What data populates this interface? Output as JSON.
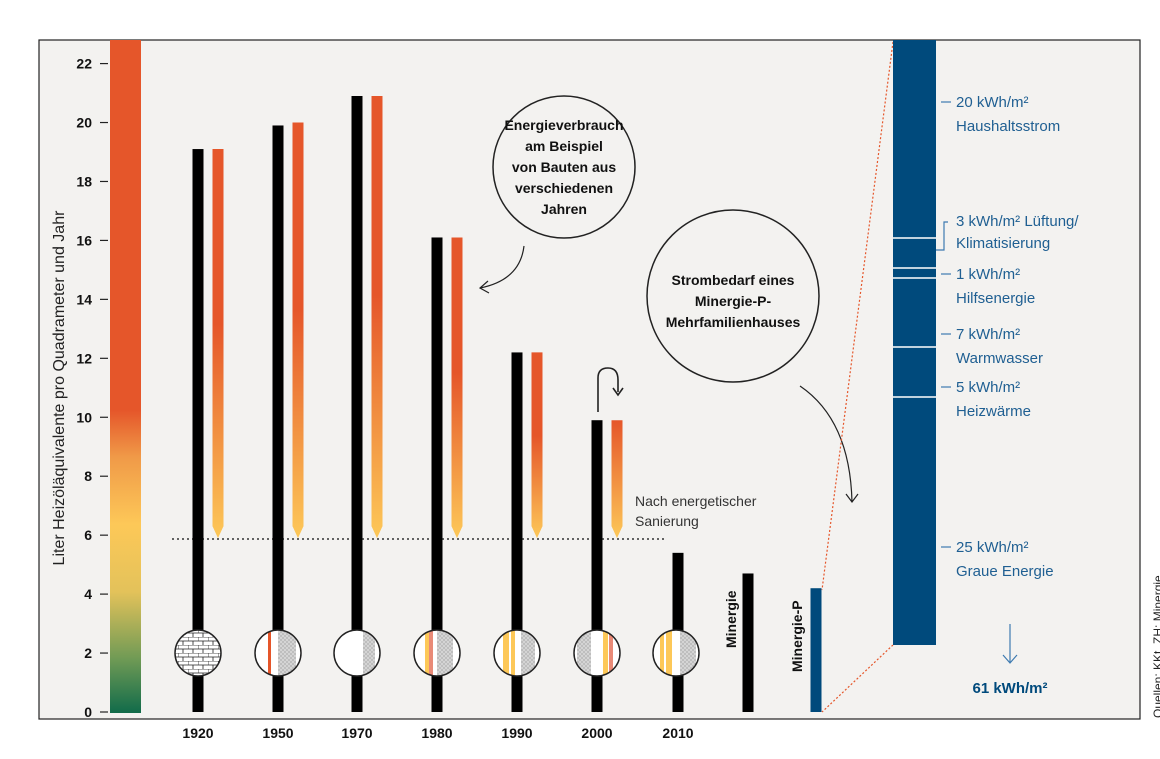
{
  "chart_data": {
    "type": "bar",
    "ylabel": "Liter Heizöläquivalente pro Quadrameter und Jahr",
    "ylim": [
      0,
      22.8
    ],
    "yticks": [
      0,
      2,
      4,
      6,
      8,
      10,
      12,
      14,
      16,
      18,
      20,
      22
    ],
    "categories": [
      "1920",
      "1950",
      "1970",
      "1980",
      "1990",
      "2000",
      "2010",
      "Minergie",
      "Minergie-P"
    ],
    "series": [
      {
        "values": [
          19.1,
          19.9,
          20.9,
          16.1,
          12.2,
          9.9,
          5.4,
          4.7,
          4.2
        ]
      },
      {
        "values": [
          19.1,
          20.0,
          20.9,
          16.1,
          12.2,
          9.9,
          null,
          null,
          null
        ]
      }
    ],
    "reference_line": 5.9,
    "bubbles": [
      "Energieverbrauch am Beispiel von Bauten aus verschiedenen Jahren",
      "Strombedarf eines Minergie-P-Mehrfamilienhauses"
    ],
    "sanierung_label": "Nach energetischer Sanierung",
    "breakdown": [
      {
        "value": "20 kWh/m²",
        "label": "Haushaltsstrom"
      },
      {
        "value": "3 kWh/m²",
        "label": "Lüftung/ Klimatisierung"
      },
      {
        "value": "1 kWh/m²",
        "label": "Hilfsenergie"
      },
      {
        "value": "7 kWh/m²",
        "label": "Warmwasser"
      },
      {
        "value": "5 kWh/m²",
        "label": "Heizwärme"
      },
      {
        "value": "25 kWh/m²",
        "label": "Graue Energie"
      }
    ],
    "total": "61 kWh/m²",
    "source": "Quellen: KKt. ZH; Minergie",
    "colors": {
      "bar": "#000000",
      "orange": "#e5562a",
      "yellow": "#fdc858",
      "blue": "#004a7c",
      "bg": "#f3f2f0",
      "dotted": "#e5562a"
    }
  }
}
